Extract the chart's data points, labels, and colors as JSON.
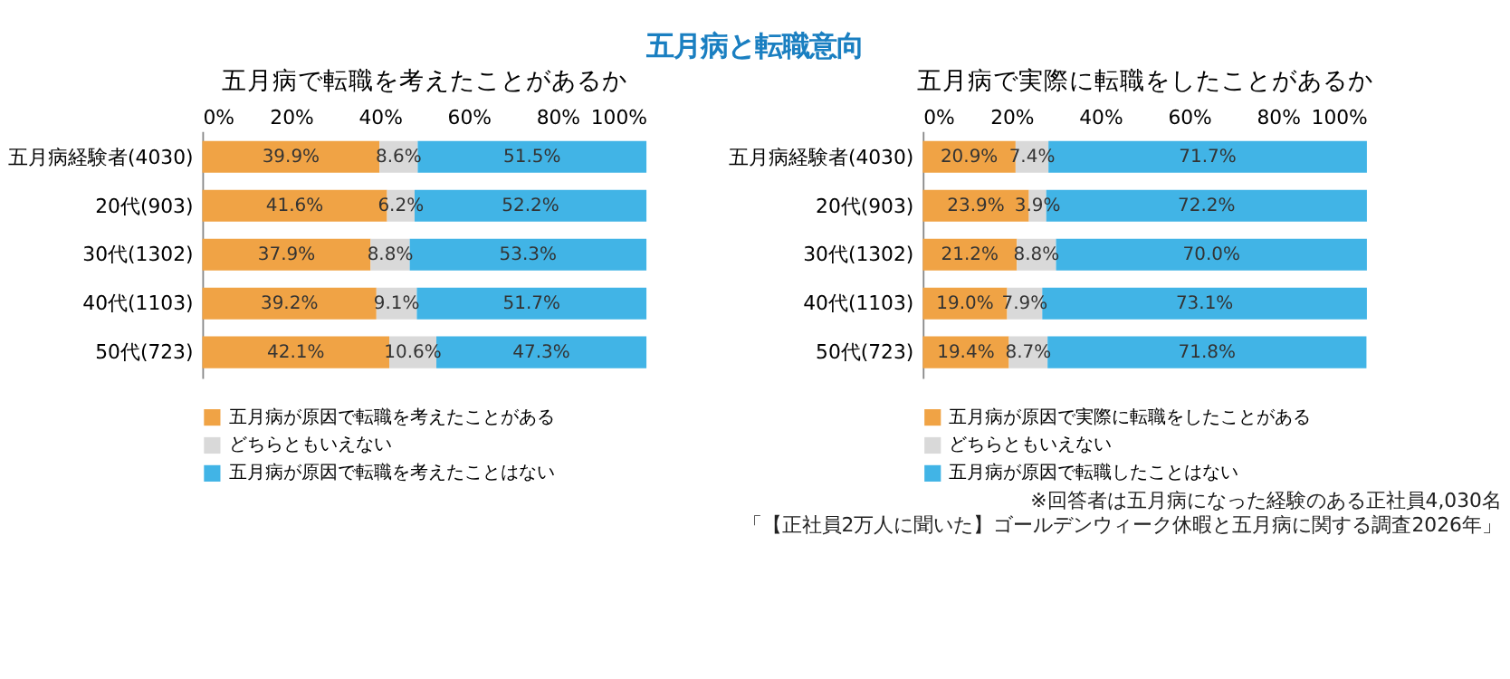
{
  "chart_data": [
    {
      "type": "other",
      "title": "五月病と転職意向"
    },
    {
      "type": "bar",
      "orientation": "horizontal",
      "stacked": true,
      "title": "五月病で転職を考えたことがあるか",
      "categories": [
        "五月病経験者(4030)",
        "20代(903)",
        "30代(1302)",
        "40代(1103)",
        "50代(723)"
      ],
      "series": [
        {
          "name": "五月病が原因で転職を考えたことがある",
          "color": "#f0a345",
          "values": [
            39.9,
            41.6,
            37.9,
            39.2,
            42.1
          ],
          "value_labels": [
            "39.9%",
            "41.6%",
            "37.9%",
            "39.2%",
            "42.1%"
          ]
        },
        {
          "name": "どちらともいえない",
          "color": "#d9d9d9",
          "values": [
            8.6,
            6.2,
            8.8,
            9.1,
            10.6
          ],
          "value_labels": [
            "8.6%",
            "6.2%",
            "8.8%",
            "9.1%",
            "10.6%"
          ]
        },
        {
          "name": "五月病が原因で転職を考えたことはない",
          "color": "#41b4e6",
          "values": [
            51.5,
            52.2,
            53.3,
            51.7,
            47.3
          ],
          "value_labels": [
            "51.5%",
            "52.2%",
            "53.3%",
            "51.7%",
            "47.3%"
          ]
        }
      ],
      "xlim": [
        0,
        100
      ],
      "xticks": [
        {
          "value": 0,
          "label": "0%"
        },
        {
          "value": 20,
          "label": "20%"
        },
        {
          "value": 40,
          "label": "40%"
        },
        {
          "value": 60,
          "label": "60%"
        },
        {
          "value": 80,
          "label": "80%"
        },
        {
          "value": 100,
          "label": "100%"
        }
      ],
      "legend": "bottom"
    },
    {
      "type": "bar",
      "orientation": "horizontal",
      "stacked": true,
      "title": "五月病で実際に転職をしたことがあるか",
      "categories": [
        "五月病経験者(4030)",
        "20代(903)",
        "30代(1302)",
        "40代(1103)",
        "50代(723)"
      ],
      "series": [
        {
          "name": "五月病が原因で実際に転職をしたことがある",
          "color": "#f0a345",
          "values": [
            20.9,
            23.9,
            21.2,
            19.0,
            19.4
          ],
          "value_labels": [
            "20.9%",
            "23.9%",
            "21.2%",
            "19.0%",
            "19.4%"
          ]
        },
        {
          "name": "どちらともいえない",
          "color": "#d9d9d9",
          "values": [
            7.4,
            3.9,
            8.8,
            7.9,
            8.7
          ],
          "value_labels": [
            "7.4%",
            "3.9%",
            "8.8%",
            "7.9%",
            "8.7%"
          ]
        },
        {
          "name": "五月病が原因で転職したことはない",
          "color": "#41b4e6",
          "values": [
            71.7,
            72.2,
            70.0,
            73.1,
            71.8
          ],
          "value_labels": [
            "71.7%",
            "72.2%",
            "70.0%",
            "73.1%",
            "71.8%"
          ]
        }
      ],
      "xlim": [
        0,
        100
      ],
      "xticks": [
        {
          "value": 0,
          "label": "0%"
        },
        {
          "value": 20,
          "label": "20%"
        },
        {
          "value": 40,
          "label": "40%"
        },
        {
          "value": 60,
          "label": "60%"
        },
        {
          "value": 80,
          "label": "80%"
        },
        {
          "value": 100,
          "label": "100%"
        }
      ],
      "legend": "bottom",
      "annotations": [
        "※回答者は五月病になった経験のある正社員4,030名",
        "「【正社員2万人に聞いた】ゴールデンウィーク休暇と五月病に関する調査2026年」"
      ]
    }
  ]
}
